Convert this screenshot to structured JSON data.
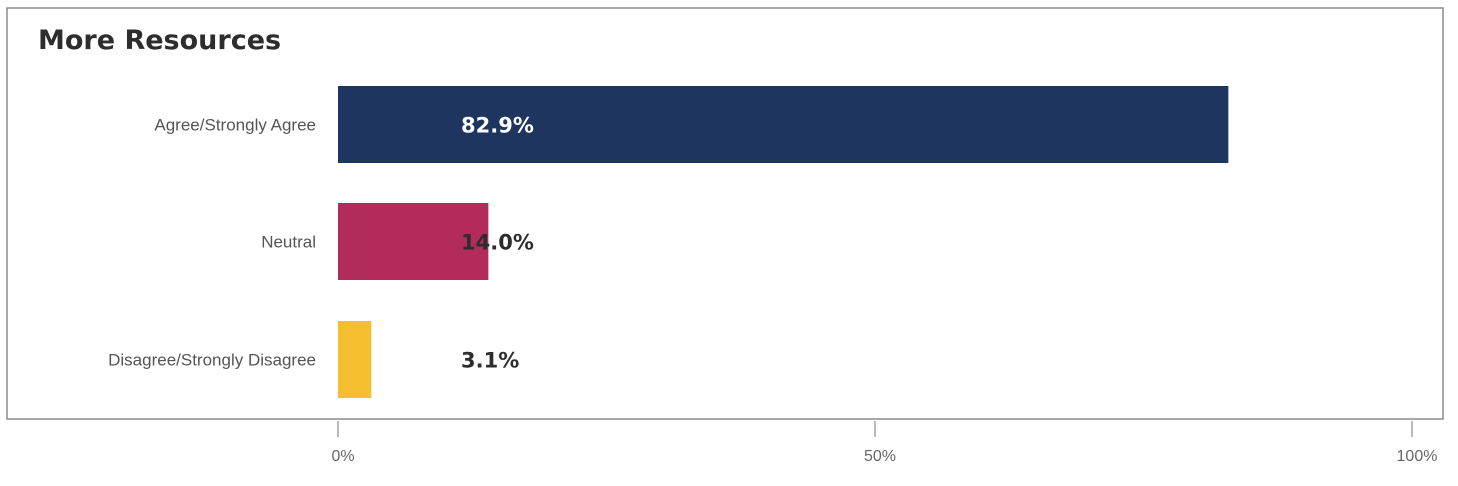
{
  "chart_data": {
    "type": "bar",
    "orientation": "horizontal",
    "title": "More Resources",
    "categories": [
      "Agree/Strongly Agree",
      "Neutral",
      "Disagree/Strongly Disagree"
    ],
    "values": [
      82.9,
      14.0,
      3.1
    ],
    "value_labels": [
      "82.9%",
      "14.0%",
      "3.1%"
    ],
    "colors": [
      "#1e365f",
      "#b32b5b",
      "#f4bf2e"
    ],
    "xlim": [
      0,
      100
    ],
    "x_ticks": [
      0,
      50,
      100
    ],
    "x_tick_labels": [
      "0%",
      "50%",
      "100%"
    ],
    "grid": false,
    "legend": "none"
  }
}
